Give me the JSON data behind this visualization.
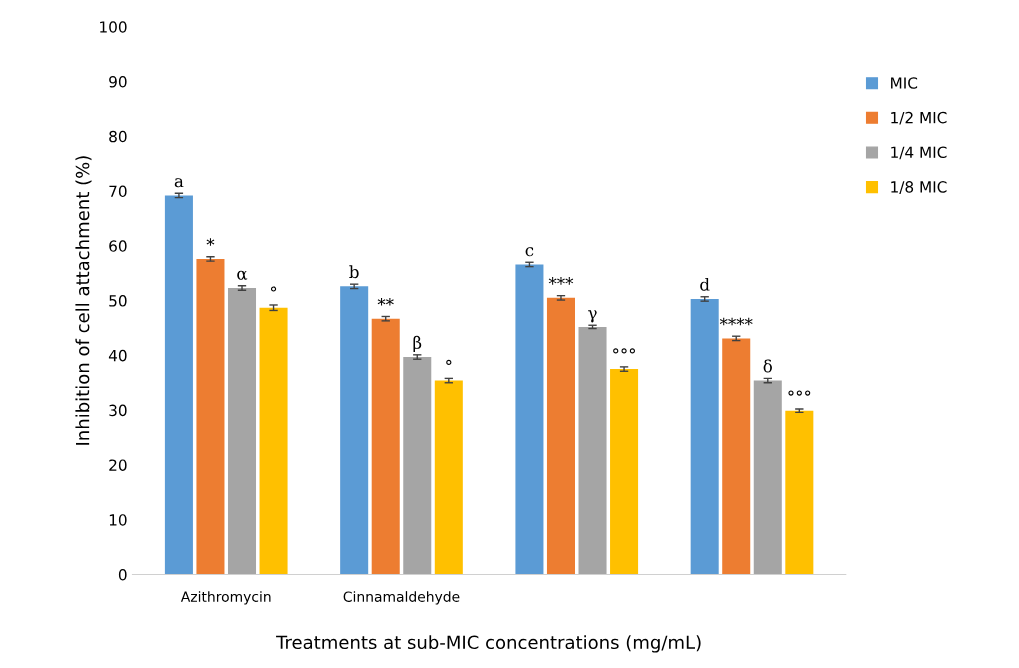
{
  "chart_data": {
    "type": "bar",
    "xlabel": "Treatments at sub-MIC concentrations (mg/mL)",
    "ylabel": "Inhibition of cell attachment (%)",
    "categories": [
      "Azithromycin",
      "Cinnamaldehyde",
      null,
      null
    ],
    "series": [
      {
        "name": "MIC",
        "color": "#5b9bd5",
        "values": [
          69.2,
          52.6,
          56.6,
          50.3
        ],
        "errors": [
          0.4,
          0.4,
          0.4,
          0.4
        ],
        "value_labels": [
          "a",
          "b",
          "c",
          "d"
        ]
      },
      {
        "name": "1/2 MIC",
        "color": "#ed7d31",
        "values": [
          57.6,
          46.7,
          50.5,
          43.1
        ],
        "errors": [
          0.4,
          0.4,
          0.4,
          0.4
        ],
        "value_labels": [
          "*",
          "**",
          "***",
          "****"
        ]
      },
      {
        "name": "1/4 MIC",
        "color": "#a5a5a5",
        "values": [
          52.3,
          39.7,
          45.2,
          35.4
        ],
        "errors": [
          0.4,
          0.4,
          0.3,
          0.4
        ],
        "value_labels": [
          "α",
          "β",
          "γ",
          "δ"
        ]
      },
      {
        "name": "1/8 MIC",
        "color": "#ffc000",
        "values": [
          48.7,
          35.4,
          37.5,
          29.9
        ],
        "errors": [
          0.5,
          0.4,
          0.4,
          0.3
        ],
        "value_labels": [
          "°",
          "°",
          "°°°",
          "°°°"
        ]
      }
    ],
    "ylim": [
      0,
      100
    ],
    "yticks": [
      0,
      10,
      20,
      30,
      40,
      50,
      60,
      70,
      80,
      90,
      100
    ],
    "grid": false,
    "legend": "right"
  }
}
